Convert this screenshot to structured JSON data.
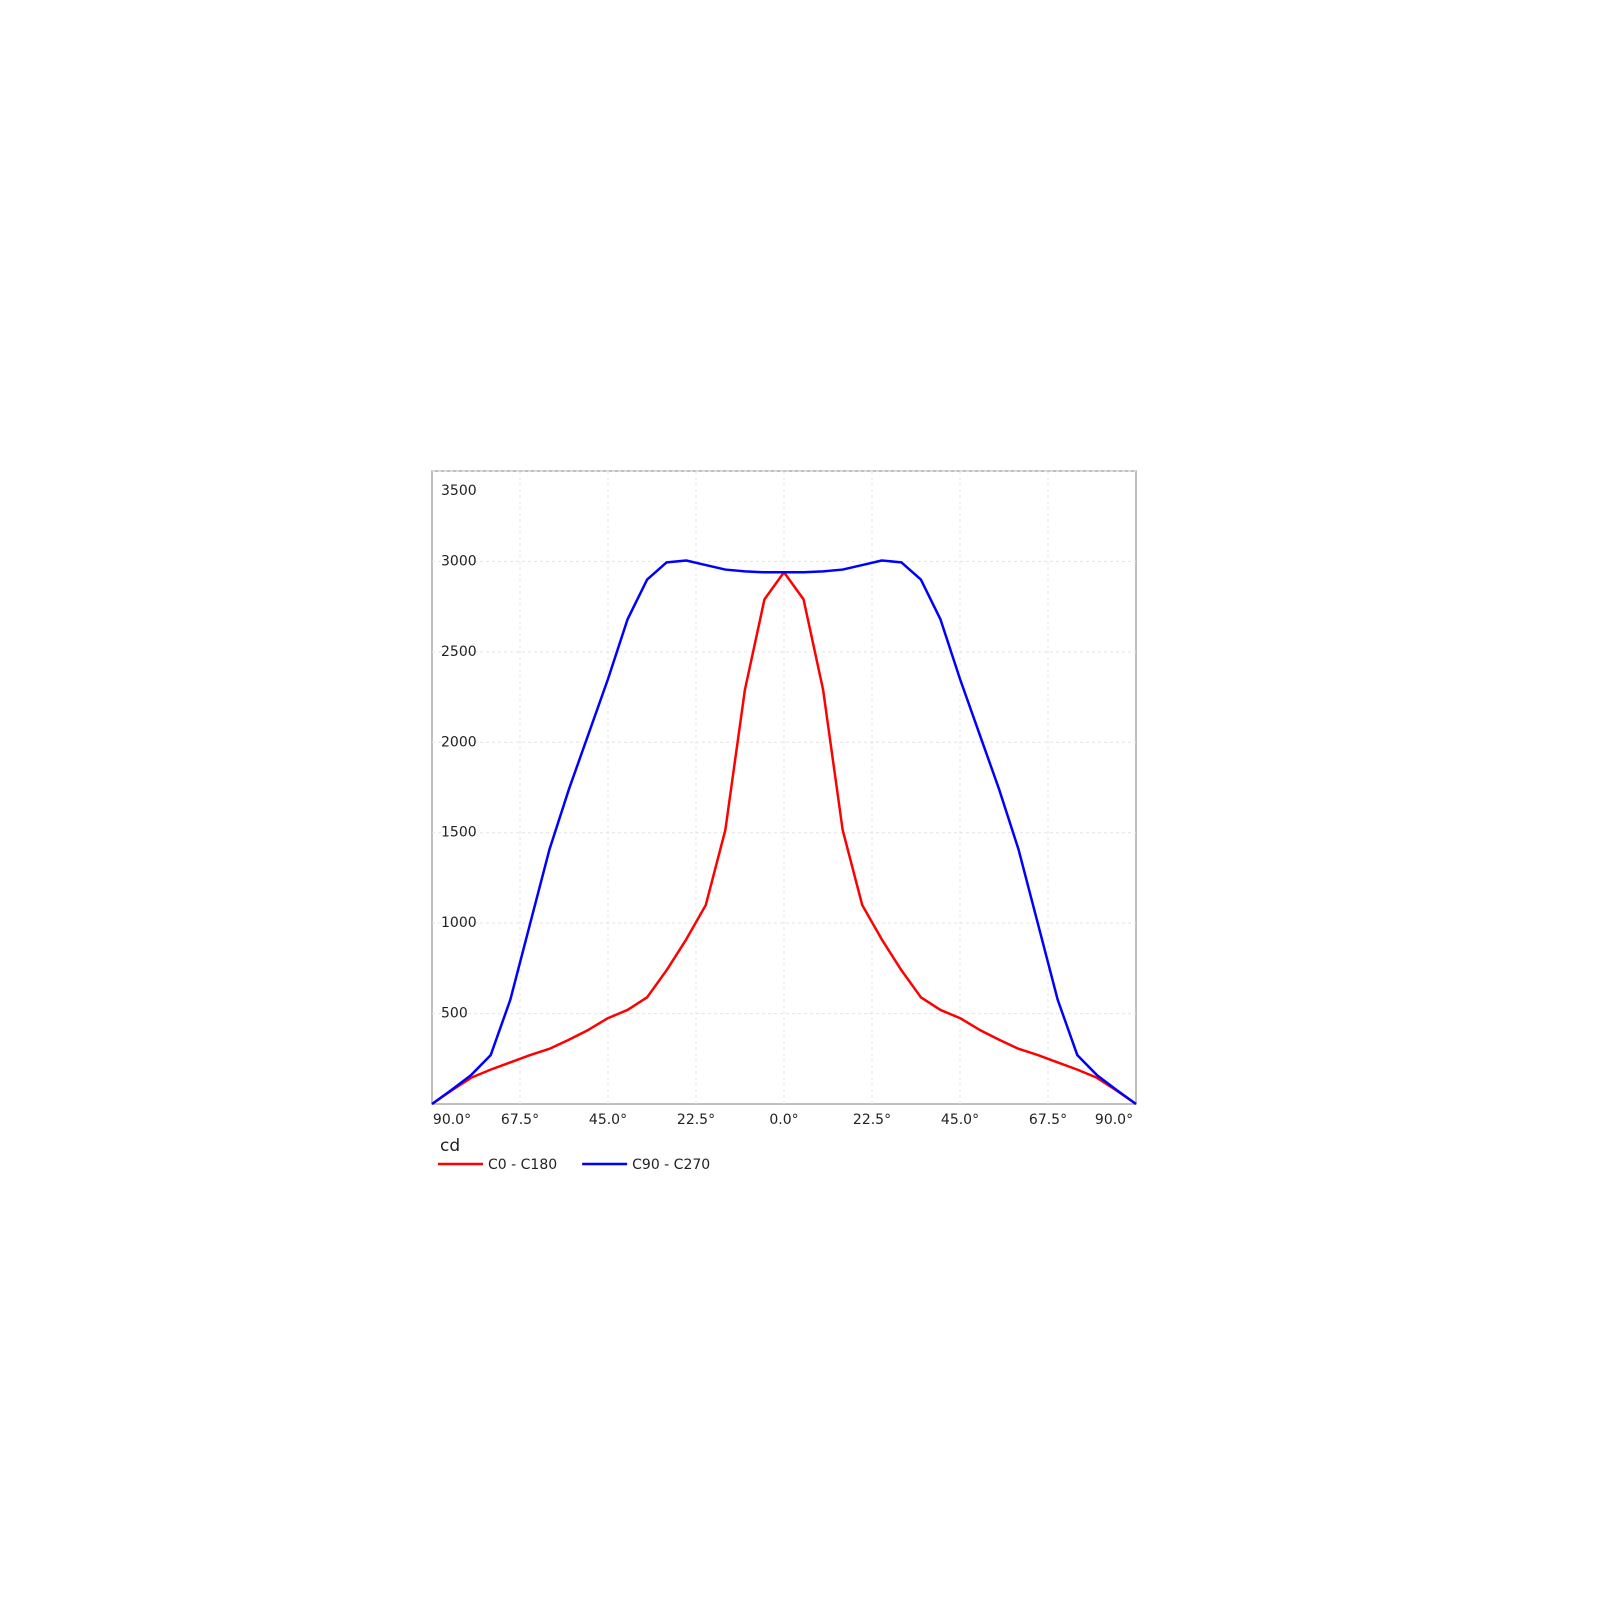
{
  "chart_data": {
    "type": "line",
    "y_axis_label": "cd",
    "x": [
      -90,
      -85,
      -80,
      -75,
      -70,
      -65,
      -60,
      -55,
      -50,
      -45,
      -40,
      -35,
      -30,
      -25,
      -20,
      -15,
      -10,
      -5,
      0,
      5,
      10,
      15,
      20,
      25,
      30,
      35,
      40,
      45,
      50,
      55,
      60,
      65,
      70,
      75,
      80,
      85,
      90
    ],
    "series": [
      {
        "name": "C0 - C180",
        "color": "#ff0000",
        "values": [
          0,
          75,
          145,
          190,
          230,
          270,
          305,
          355,
          410,
          475,
          520,
          590,
          740,
          910,
          1100,
          1515,
          2290,
          2790,
          2940,
          2790,
          2290,
          1515,
          1100,
          910,
          740,
          590,
          520,
          475,
          410,
          355,
          305,
          270,
          230,
          190,
          145,
          75,
          0
        ]
      },
      {
        "name": "C90 - C270",
        "color": "#0000ff",
        "values": [
          0,
          78,
          160,
          270,
          575,
          990,
          1405,
          1740,
          2045,
          2350,
          2680,
          2900,
          2995,
          3005,
          2980,
          2955,
          2945,
          2940,
          2940,
          2940,
          2945,
          2955,
          2980,
          3005,
          2995,
          2900,
          2680,
          2350,
          2045,
          1740,
          1405,
          990,
          575,
          270,
          160,
          78,
          0
        ]
      }
    ],
    "xlim": [
      -90,
      90
    ],
    "xticks": [
      {
        "value": -90,
        "label": "90.0°"
      },
      {
        "value": -67.5,
        "label": "67.5°"
      },
      {
        "value": -45,
        "label": "45.0°"
      },
      {
        "value": -22.5,
        "label": "22.5°"
      },
      {
        "value": 0,
        "label": "0.0°"
      },
      {
        "value": 22.5,
        "label": "22.5°"
      },
      {
        "value": 45,
        "label": "45.0°"
      },
      {
        "value": 67.5,
        "label": "67.5°"
      },
      {
        "value": 90,
        "label": "90.0°"
      }
    ],
    "ylim": [
      0,
      3500
    ],
    "yticks": [
      500,
      1000,
      1500,
      2000,
      2500,
      3000,
      3500
    ],
    "grid": true
  }
}
